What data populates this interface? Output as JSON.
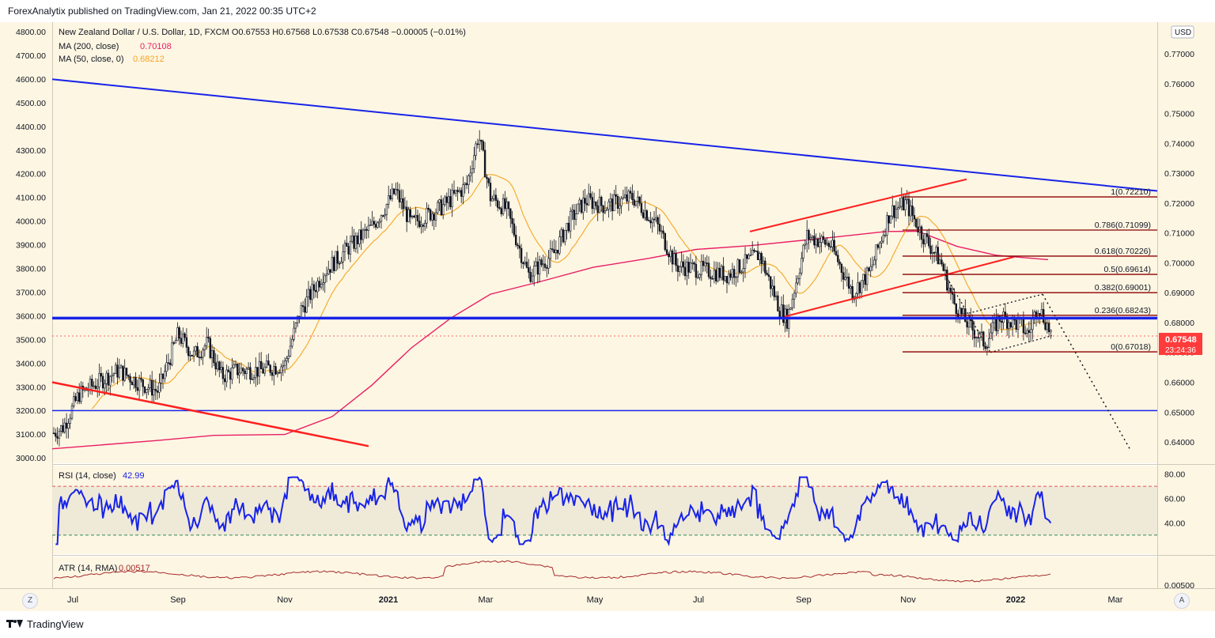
{
  "header": {
    "publisher_text": "ForexAnalytix published on TradingView.com, Jan 21, 2022 00:35 UTC+2"
  },
  "footer": {
    "brand": "TradingView"
  },
  "buttons": {
    "left_corner": "Z",
    "right_corner": "A"
  },
  "legend": {
    "symbol_line": "New Zealand Dollar / U.S. Dollar, 1D, FXCM  O0.67553  H0.67568  L0.67538  C0.67548  −0.00005 (−0.01%)",
    "ma200_label": "MA (200, close)",
    "ma200_value": "0.70108",
    "ma50_label": "MA (50, close, 0)",
    "ma50_value": "0.68212",
    "rsi_label": "RSI (14, close)",
    "rsi_value": "42.99",
    "atr_label": "ATR (14, RMA)",
    "atr_value": "0.00517"
  },
  "price_badge": {
    "price": "0.67548",
    "countdown": "23:24:36",
    "currency": "USD"
  },
  "colors": {
    "background": "#fdf6e3",
    "candle_up": "#131722",
    "candle_down": "#131722",
    "blue_lines": "#1723e8",
    "red_lines": "#ff1f1f",
    "ma200": "#e91e63",
    "ma50": "#f5a623",
    "fib": "#8b0000",
    "rsi": "#1723e8",
    "atr": "#a52a2a",
    "badge": "#ff3b3b"
  },
  "chart_data": {
    "type": "candlestick",
    "title": "New Zealand Dollar / U.S. Dollar, 1D, FXCM",
    "x_tick_labels": [
      "Jul",
      "Sep",
      "Nov",
      "2021",
      "Mar",
      "May",
      "Jul",
      "Sep",
      "Nov",
      "2022",
      "Mar"
    ],
    "right_axis_ticks": [
      "0.77000",
      "0.76000",
      "0.75000",
      "0.74000",
      "0.73000",
      "0.72000",
      "0.71000",
      "0.70000",
      "0.69000",
      "0.68000",
      "0.67000",
      "0.66000",
      "0.65000",
      "0.64000"
    ],
    "left_axis_ticks": [
      "4800.00",
      "4700.00",
      "4600.00",
      "4500.00",
      "4400.00",
      "4300.00",
      "4200.00",
      "4100.00",
      "4000.00",
      "3900.00",
      "3800.00",
      "3700.00",
      "3600.00",
      "3500.00",
      "3400.00",
      "3300.00",
      "3200.00",
      "3100.00",
      "3000.00"
    ],
    "ylim": [
      0.635,
      0.7795
    ],
    "price_series": [
      {
        "month": "2020-06",
        "close": 0.645
      },
      {
        "month": "2020-07",
        "close": 0.664
      },
      {
        "month": "2020-08",
        "close": 0.661
      },
      {
        "month": "2020-09",
        "close": 0.675
      },
      {
        "month": "2020-10",
        "close": 0.662
      },
      {
        "month": "2020-11",
        "close": 0.688
      },
      {
        "month": "2020-12",
        "close": 0.715
      },
      {
        "month": "2021-01",
        "close": 0.722
      },
      {
        "month": "2021-02",
        "close": 0.745
      },
      {
        "month": "2021-03",
        "close": 0.7
      },
      {
        "month": "2021-04",
        "close": 0.717
      },
      {
        "month": "2021-05",
        "close": 0.727
      },
      {
        "month": "2021-06",
        "close": 0.698
      },
      {
        "month": "2021-07",
        "close": 0.696
      },
      {
        "month": "2021-08",
        "close": 0.682
      },
      {
        "month": "2021-09",
        "close": 0.708
      },
      {
        "month": "2021-10",
        "close": 0.719
      },
      {
        "month": "2021-11",
        "close": 0.686
      },
      {
        "month": "2021-12",
        "close": 0.676
      },
      {
        "month": "2022-01",
        "close": 0.6755
      }
    ],
    "fib_levels": [
      {
        "ratio": "1",
        "value": 0.7221,
        "label": "1(0.72210)"
      },
      {
        "ratio": "0.786",
        "value": 0.71099,
        "label": "0.786(0.71099)"
      },
      {
        "ratio": "0.618",
        "value": 0.70226,
        "label": "0.618(0.70226)"
      },
      {
        "ratio": "0.5",
        "value": 0.69614,
        "label": "0.5(0.69614)"
      },
      {
        "ratio": "0.382",
        "value": 0.69001,
        "label": "0.382(0.69001)"
      },
      {
        "ratio": "0.236",
        "value": 0.68243,
        "label": "0.236(0.68243)"
      },
      {
        "ratio": "0",
        "value": 0.67018,
        "label": "0(0.67018)"
      }
    ],
    "horizontal_levels": [
      0.6815,
      0.6505
    ],
    "rsi": {
      "axis_ticks": [
        "80.00",
        "60.00",
        "40.00"
      ],
      "upper": 70,
      "lower": 30,
      "last": 42.99
    },
    "atr": {
      "axis_ticks": [
        "0.00500"
      ],
      "last": 0.00517
    }
  }
}
